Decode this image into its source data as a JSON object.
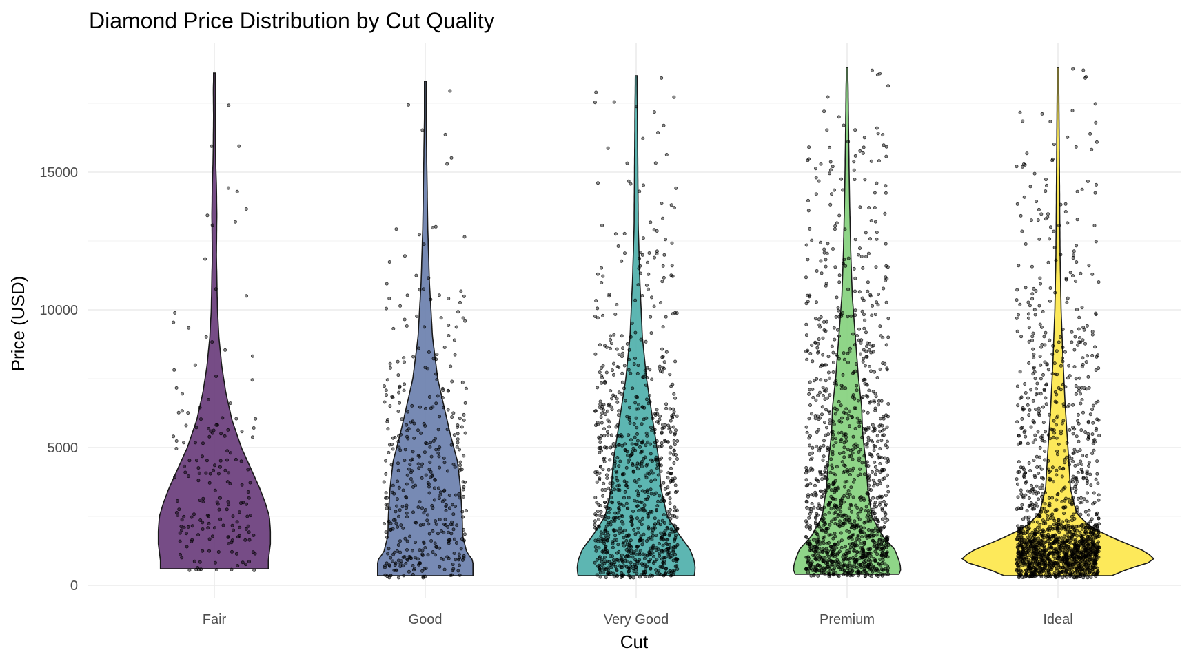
{
  "chart_data": {
    "type": "violin",
    "title": "Diamond Price Distribution by Cut Quality",
    "xlabel": "Cut",
    "ylabel": "Price (USD)",
    "categories": [
      "Fair",
      "Good",
      "Very Good",
      "Premium",
      "Ideal"
    ],
    "ylim": [
      -400,
      19400
    ],
    "y_ticks": [
      0,
      5000,
      10000,
      15000
    ],
    "y_tick_labels": [
      "0",
      "5000",
      "10000",
      "15000"
    ],
    "y_minor_ticks": [
      2500,
      7500,
      12500,
      17500
    ],
    "grid": true,
    "legend": "none",
    "colors": [
      "#6a3d7c",
      "#6b80ae",
      "#4fb0ab",
      "#86d17e",
      "#fde74c"
    ],
    "violins": [
      {
        "category": "Fair",
        "min": 600,
        "max": 18600,
        "profile": [
          [
            600,
            0.26
          ],
          [
            900,
            0.26
          ],
          [
            1500,
            0.27
          ],
          [
            2000,
            0.27
          ],
          [
            2500,
            0.265
          ],
          [
            3000,
            0.245
          ],
          [
            3500,
            0.22
          ],
          [
            4000,
            0.19
          ],
          [
            5000,
            0.13
          ],
          [
            6000,
            0.085
          ],
          [
            7000,
            0.055
          ],
          [
            8000,
            0.035
          ],
          [
            9000,
            0.022
          ],
          [
            10000,
            0.015
          ],
          [
            12000,
            0.01
          ],
          [
            13500,
            0.012
          ],
          [
            14500,
            0.01
          ],
          [
            15500,
            0.006
          ],
          [
            17000,
            0.004
          ],
          [
            18000,
            0.005
          ],
          [
            18600,
            0.003
          ]
        ],
        "points": 180
      },
      {
        "category": "Good",
        "min": 350,
        "max": 18300,
        "profile": [
          [
            350,
            0.23
          ],
          [
            600,
            0.23
          ],
          [
            900,
            0.23
          ],
          [
            1200,
            0.2
          ],
          [
            1800,
            0.18
          ],
          [
            2500,
            0.178
          ],
          [
            3500,
            0.17
          ],
          [
            4500,
            0.155
          ],
          [
            5500,
            0.12
          ],
          [
            6500,
            0.09
          ],
          [
            7500,
            0.06
          ],
          [
            9000,
            0.035
          ],
          [
            11000,
            0.02
          ],
          [
            13000,
            0.012
          ],
          [
            15000,
            0.008
          ],
          [
            17000,
            0.004
          ],
          [
            18300,
            0.002
          ]
        ],
        "points": 420
      },
      {
        "category": "Very Good",
        "min": 350,
        "max": 18500,
        "profile": [
          [
            350,
            0.28
          ],
          [
            600,
            0.285
          ],
          [
            900,
            0.28
          ],
          [
            1300,
            0.26
          ],
          [
            1800,
            0.21
          ],
          [
            2500,
            0.15
          ],
          [
            3500,
            0.12
          ],
          [
            4500,
            0.11
          ],
          [
            5500,
            0.09
          ],
          [
            6500,
            0.07
          ],
          [
            7500,
            0.05
          ],
          [
            9000,
            0.03
          ],
          [
            11000,
            0.018
          ],
          [
            13000,
            0.01
          ],
          [
            15000,
            0.008
          ],
          [
            17000,
            0.006
          ],
          [
            18500,
            0.004
          ]
        ],
        "points": 950
      },
      {
        "category": "Premium",
        "min": 400,
        "max": 18800,
        "profile": [
          [
            400,
            0.25
          ],
          [
            600,
            0.26
          ],
          [
            900,
            0.25
          ],
          [
            1300,
            0.23
          ],
          [
            1800,
            0.17
          ],
          [
            2500,
            0.12
          ],
          [
            3500,
            0.1
          ],
          [
            4500,
            0.09
          ],
          [
            5500,
            0.075
          ],
          [
            6500,
            0.07
          ],
          [
            7500,
            0.055
          ],
          [
            9000,
            0.04
          ],
          [
            10500,
            0.025
          ],
          [
            12000,
            0.018
          ],
          [
            14000,
            0.012
          ],
          [
            16000,
            0.008
          ],
          [
            18000,
            0.005
          ],
          [
            18800,
            0.003
          ]
        ],
        "points": 1250
      },
      {
        "category": "Ideal",
        "min": 350,
        "max": 18800,
        "profile": [
          [
            350,
            0.26
          ],
          [
            600,
            0.34
          ],
          [
            850,
            0.45
          ],
          [
            1000,
            0.465
          ],
          [
            1300,
            0.4
          ],
          [
            1700,
            0.27
          ],
          [
            2100,
            0.16
          ],
          [
            2600,
            0.09
          ],
          [
            3500,
            0.06
          ],
          [
            5000,
            0.048
          ],
          [
            6500,
            0.035
          ],
          [
            8000,
            0.025
          ],
          [
            10000,
            0.015
          ],
          [
            12000,
            0.01
          ],
          [
            14000,
            0.008
          ],
          [
            16000,
            0.006
          ],
          [
            18000,
            0.004
          ],
          [
            18800,
            0.002
          ]
        ],
        "points": 1600
      }
    ]
  }
}
